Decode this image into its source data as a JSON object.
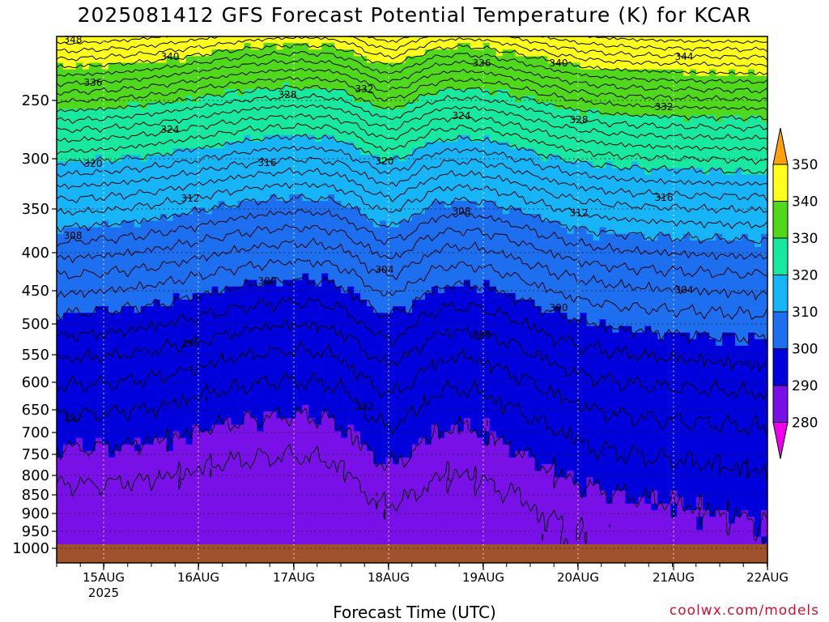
{
  "chart_data": {
    "type": "heatmap",
    "title": "2025081412 GFS Forecast Potential Temperature (K) for KCAR",
    "xlabel": "Forecast Time (UTC)",
    "ylabel": "",
    "x_ticks": [
      "15AUG",
      "16AUG",
      "17AUG",
      "18AUG",
      "19AUG",
      "20AUG",
      "21AUG",
      "22AUG"
    ],
    "x_year_label": "2025",
    "y_ticks": [
      250,
      300,
      350,
      400,
      450,
      500,
      550,
      600,
      650,
      700,
      750,
      800,
      850,
      900,
      950,
      1000
    ],
    "y_axis": "pressure (hPa), inverted, log-like scale",
    "ylim": [
      1000,
      200
    ],
    "colorbar": {
      "levels": [
        280,
        290,
        300,
        310,
        320,
        330,
        340,
        350
      ],
      "labels": [
        "280",
        "290",
        "300",
        "310",
        "320",
        "330",
        "340",
        "350"
      ],
      "colors": [
        "#ee00ee",
        "#7a10e8",
        "#0000dc",
        "#1e6ef0",
        "#18b4f8",
        "#18e8a0",
        "#50d81c",
        "#ffff1e",
        "#ffa010"
      ]
    },
    "contour_labels": [
      "292",
      "296",
      "300",
      "304",
      "308",
      "312",
      "316",
      "320",
      "324",
      "328",
      "332",
      "336",
      "340",
      "344",
      "348"
    ],
    "surface_color": "#a0522d",
    "grid": true
  },
  "watermark": "coolwx.com/models"
}
